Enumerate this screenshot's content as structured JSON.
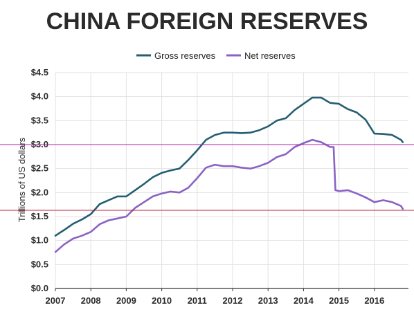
{
  "chart_data": {
    "type": "line",
    "title": "CHINA FOREIGN RESERVES",
    "xlabel": "",
    "ylabel": "Trillions of US dollars",
    "xlim": [
      2007,
      2016.8
    ],
    "ylim": [
      0,
      4.5
    ],
    "grid": true,
    "legend_position": "top-center",
    "x_ticks": [
      {
        "value": 2007,
        "label": "2007"
      },
      {
        "value": 2008,
        "label": "2008"
      },
      {
        "value": 2009,
        "label": "2009"
      },
      {
        "value": 2010,
        "label": "2010"
      },
      {
        "value": 2011,
        "label": "2011"
      },
      {
        "value": 2012,
        "label": "2012"
      },
      {
        "value": 2013,
        "label": "2013"
      },
      {
        "value": 2014,
        "label": "2014"
      },
      {
        "value": 2015,
        "label": "2015"
      },
      {
        "value": 2016,
        "label": "2016"
      }
    ],
    "y_ticks": [
      {
        "value": 0,
        "label": "$0.0"
      },
      {
        "value": 0.5,
        "label": "$0.5"
      },
      {
        "value": 1.0,
        "label": "$1.0"
      },
      {
        "value": 1.5,
        "label": "$1.5"
      },
      {
        "value": 2.0,
        "label": "$2.0"
      },
      {
        "value": 2.5,
        "label": "$2.5"
      },
      {
        "value": 3.0,
        "label": "$3.0"
      },
      {
        "value": 3.5,
        "label": "$3.5"
      },
      {
        "value": 4.0,
        "label": "$4.0"
      },
      {
        "value": 4.5,
        "label": "$4.5"
      }
    ],
    "series": [
      {
        "name": "Gross reserves",
        "color": "#235f72",
        "points": [
          [
            2007.0,
            1.1
          ],
          [
            2007.25,
            1.22
          ],
          [
            2007.5,
            1.35
          ],
          [
            2007.75,
            1.44
          ],
          [
            2008.0,
            1.55
          ],
          [
            2008.25,
            1.76
          ],
          [
            2008.5,
            1.84
          ],
          [
            2008.75,
            1.92
          ],
          [
            2009.0,
            1.92
          ],
          [
            2009.25,
            2.05
          ],
          [
            2009.5,
            2.18
          ],
          [
            2009.75,
            2.32
          ],
          [
            2010.0,
            2.41
          ],
          [
            2010.25,
            2.46
          ],
          [
            2010.5,
            2.5
          ],
          [
            2010.75,
            2.68
          ],
          [
            2011.0,
            2.88
          ],
          [
            2011.25,
            3.1
          ],
          [
            2011.5,
            3.2
          ],
          [
            2011.75,
            3.25
          ],
          [
            2012.0,
            3.25
          ],
          [
            2012.25,
            3.24
          ],
          [
            2012.5,
            3.25
          ],
          [
            2012.75,
            3.3
          ],
          [
            2013.0,
            3.38
          ],
          [
            2013.25,
            3.5
          ],
          [
            2013.5,
            3.55
          ],
          [
            2013.75,
            3.72
          ],
          [
            2014.0,
            3.85
          ],
          [
            2014.25,
            3.98
          ],
          [
            2014.5,
            3.98
          ],
          [
            2014.75,
            3.87
          ],
          [
            2015.0,
            3.85
          ],
          [
            2015.25,
            3.74
          ],
          [
            2015.5,
            3.67
          ],
          [
            2015.75,
            3.52
          ],
          [
            2016.0,
            3.23
          ],
          [
            2016.25,
            3.22
          ],
          [
            2016.5,
            3.2
          ],
          [
            2016.75,
            3.1
          ],
          [
            2016.8,
            3.05
          ]
        ]
      },
      {
        "name": "Net reserves",
        "color": "#8a62c4",
        "points": [
          [
            2007.0,
            0.76
          ],
          [
            2007.25,
            0.92
          ],
          [
            2007.5,
            1.04
          ],
          [
            2007.75,
            1.1
          ],
          [
            2008.0,
            1.18
          ],
          [
            2008.25,
            1.34
          ],
          [
            2008.5,
            1.42
          ],
          [
            2008.75,
            1.46
          ],
          [
            2009.0,
            1.5
          ],
          [
            2009.25,
            1.68
          ],
          [
            2009.5,
            1.8
          ],
          [
            2009.75,
            1.92
          ],
          [
            2010.0,
            1.98
          ],
          [
            2010.25,
            2.02
          ],
          [
            2010.5,
            2.0
          ],
          [
            2010.75,
            2.1
          ],
          [
            2011.0,
            2.3
          ],
          [
            2011.25,
            2.52
          ],
          [
            2011.5,
            2.58
          ],
          [
            2011.75,
            2.55
          ],
          [
            2012.0,
            2.55
          ],
          [
            2012.25,
            2.52
          ],
          [
            2012.5,
            2.5
          ],
          [
            2012.75,
            2.55
          ],
          [
            2013.0,
            2.62
          ],
          [
            2013.25,
            2.74
          ],
          [
            2013.5,
            2.8
          ],
          [
            2013.75,
            2.95
          ],
          [
            2014.0,
            3.03
          ],
          [
            2014.25,
            3.1
          ],
          [
            2014.5,
            3.05
          ],
          [
            2014.75,
            2.95
          ],
          [
            2014.85,
            2.95
          ],
          [
            2014.9,
            2.05
          ],
          [
            2015.0,
            2.03
          ],
          [
            2015.25,
            2.05
          ],
          [
            2015.5,
            1.98
          ],
          [
            2015.75,
            1.9
          ],
          [
            2016.0,
            1.8
          ],
          [
            2016.25,
            1.84
          ],
          [
            2016.5,
            1.8
          ],
          [
            2016.75,
            1.72
          ],
          [
            2016.8,
            1.66
          ]
        ]
      }
    ],
    "reference_lines": [
      {
        "y": 3.0,
        "color": "#b21fb0"
      },
      {
        "y": 1.63,
        "color": "#b3263f"
      }
    ]
  }
}
